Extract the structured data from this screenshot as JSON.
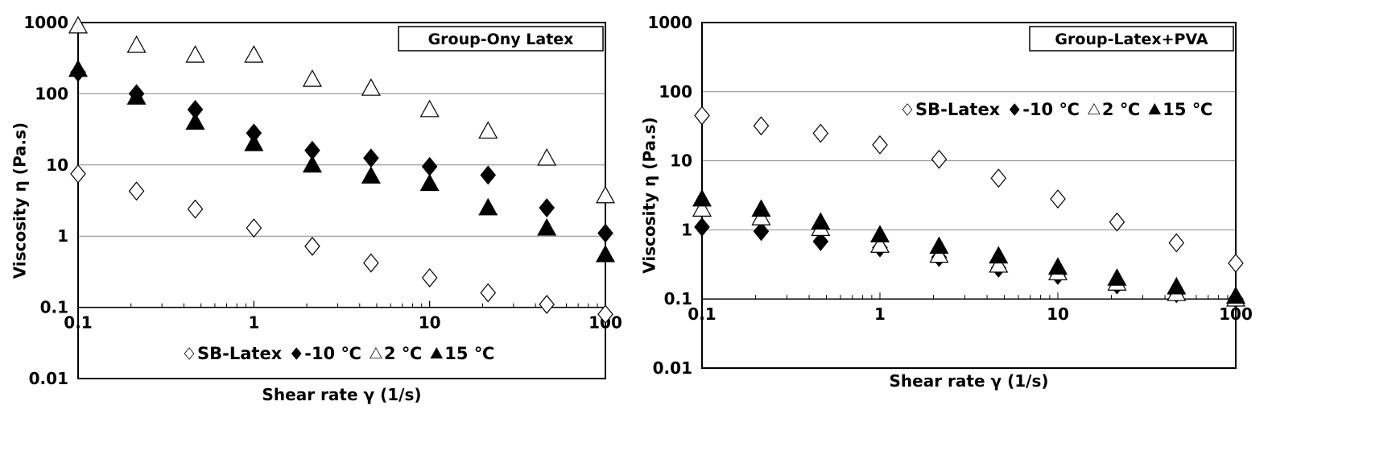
{
  "chart_data": [
    {
      "type": "scatter",
      "title": "Group-Ony Latex",
      "xlabel": "Shear rate γ  (1/s)",
      "ylabel": "Viscosity η  (Pa.s)",
      "xscale": "log",
      "yscale": "log",
      "xlim": [
        0.1,
        100
      ],
      "ylim": [
        0.01,
        1000
      ],
      "grid": "horizontal",
      "legend_position": "inside-bottom",
      "x_tick_labels": [
        "0.1",
        "1",
        "10",
        "100"
      ],
      "y_tick_labels": [
        "0.01",
        "0.1",
        "1",
        "10",
        "100",
        "1000"
      ],
      "x": [
        0.1,
        0.215,
        0.464,
        1,
        2.15,
        4.64,
        10,
        21.5,
        46.4,
        100
      ],
      "series": [
        {
          "name": "SB-Latex",
          "marker": "diamond-open",
          "values": [
            7.5,
            4.3,
            2.4,
            1.3,
            0.72,
            0.42,
            0.26,
            0.16,
            0.11,
            0.08
          ]
        },
        {
          "name": "-10 ℃",
          "marker": "diamond-filled",
          "values": [
            200,
            100,
            60,
            28,
            16,
            12.5,
            9.5,
            7.2,
            2.5,
            1.1
          ]
        },
        {
          "name": "2 ℃",
          "marker": "triangle-open",
          "values": [
            900,
            480,
            350,
            350,
            160,
            120,
            60,
            30,
            12.5,
            3.7
          ]
        },
        {
          "name": "15 ℃",
          "marker": "triangle-filled",
          "values": [
            220,
            90,
            40,
            20,
            10,
            7,
            5.5,
            2.5,
            1.3,
            0.55
          ]
        }
      ]
    },
    {
      "type": "scatter",
      "title": "Group-Latex+PVA",
      "xlabel": "Shear rate γ  (1/s)",
      "ylabel": "Viscosity η  (Pa.s)",
      "xscale": "log",
      "yscale": "log",
      "xlim": [
        0.1,
        100
      ],
      "ylim": [
        0.01,
        1000
      ],
      "grid": "horizontal",
      "legend_position": "inside-top",
      "x_tick_labels": [
        "0.1",
        "1",
        "10",
        "100"
      ],
      "y_tick_labels": [
        "0.01",
        "0.1",
        "1",
        "10",
        "100",
        "1000"
      ],
      "x": [
        0.1,
        0.215,
        0.464,
        1,
        2.15,
        4.64,
        10,
        21.5,
        46.4,
        100
      ],
      "series": [
        {
          "name": "SB-Latex",
          "marker": "diamond-open",
          "values": [
            45,
            32,
            25,
            17,
            10.5,
            5.6,
            2.8,
            1.3,
            0.65,
            0.33
          ]
        },
        {
          "name": "-10 ℃",
          "marker": "diamond-filled",
          "values": [
            1.1,
            0.95,
            0.68,
            0.55,
            0.4,
            0.28,
            0.22,
            0.16,
            0.12,
            0.1
          ]
        },
        {
          "name": "2 ℃",
          "marker": "triangle-open",
          "values": [
            2.0,
            1.5,
            1.05,
            0.6,
            0.43,
            0.31,
            0.24,
            0.17,
            0.12,
            0.1
          ]
        },
        {
          "name": "15 ℃",
          "marker": "triangle-filled",
          "values": [
            2.8,
            2.0,
            1.3,
            0.85,
            0.58,
            0.42,
            0.29,
            0.2,
            0.15,
            0.11
          ]
        }
      ]
    }
  ],
  "colors": {
    "marker": "#000000",
    "grid": "#888888",
    "frame": "#000000",
    "background": "#ffffff"
  }
}
